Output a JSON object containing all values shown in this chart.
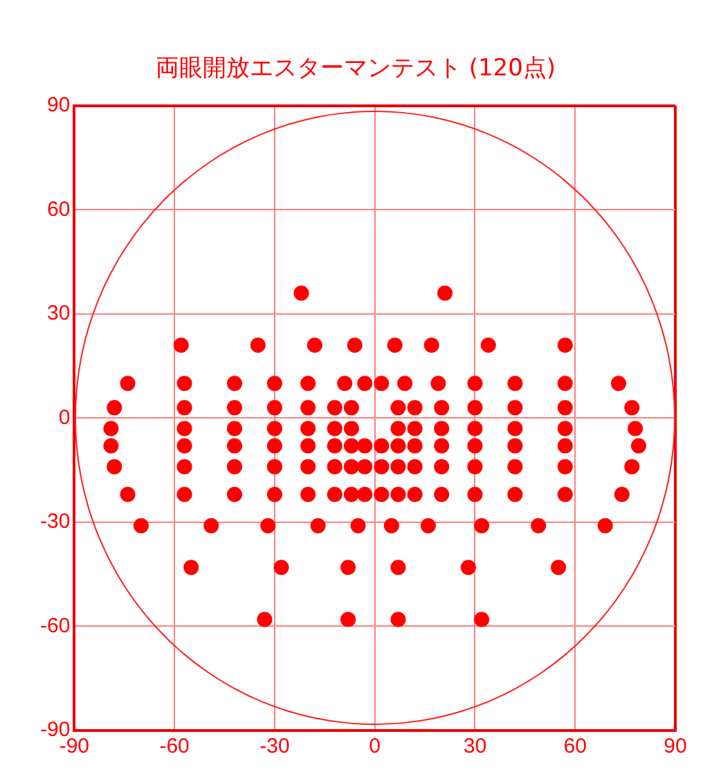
{
  "chart_data": {
    "type": "scatter",
    "title": "両眼開放エスターマンテスト (120点)",
    "xlim": [
      -90,
      90
    ],
    "ylim": [
      -90,
      90
    ],
    "xticks": [
      -90,
      -60,
      -30,
      0,
      30,
      60,
      90
    ],
    "yticks": [
      -90,
      -60,
      -30,
      0,
      30,
      60,
      90
    ],
    "grid": true,
    "legend": false,
    "marker": "circle",
    "series": [
      {
        "color": "#ff0000",
        "x": [
          -22,
          21,
          -58,
          -35,
          -18,
          -6,
          6,
          17,
          34,
          57,
          -74,
          -57,
          -42,
          -30,
          -20,
          -9,
          -3,
          2,
          9,
          19,
          30,
          42,
          57,
          73,
          -78,
          -57,
          -42,
          -30,
          -20,
          -12,
          -7,
          7,
          12,
          20,
          30,
          42,
          57,
          77,
          -79,
          -57,
          -42,
          -30,
          -20,
          -12,
          -7,
          7,
          12,
          20,
          30,
          42,
          57,
          78,
          -79,
          -57,
          -42,
          -30,
          -20,
          -12,
          -7,
          -3,
          2,
          7,
          12,
          20,
          30,
          42,
          57,
          79,
          -78,
          -57,
          -42,
          -30,
          -20,
          -12,
          -7,
          -3,
          2,
          7,
          12,
          20,
          30,
          42,
          57,
          77,
          -74,
          -57,
          -42,
          -30,
          -20,
          -12,
          -7,
          -3,
          2,
          7,
          12,
          20,
          30,
          42,
          57,
          74,
          -70,
          -49,
          -32,
          -17,
          -5,
          5,
          16,
          32,
          49,
          69,
          -55,
          -28,
          -8,
          7,
          28,
          55,
          -33,
          -8,
          7,
          32
        ],
        "values": [
          36,
          36,
          21,
          21,
          21,
          21,
          21,
          21,
          21,
          21,
          10,
          10,
          10,
          10,
          10,
          10,
          10,
          10,
          10,
          10,
          10,
          10,
          10,
          10,
          3,
          3,
          3,
          3,
          3,
          3,
          3,
          3,
          3,
          3,
          3,
          3,
          3,
          3,
          -3,
          -3,
          -3,
          -3,
          -3,
          -3,
          -3,
          -3,
          -3,
          -3,
          -3,
          -3,
          -3,
          -3,
          -8,
          -8,
          -8,
          -8,
          -8,
          -8,
          -8,
          -8,
          -8,
          -8,
          -8,
          -8,
          -8,
          -8,
          -8,
          -8,
          -14,
          -14,
          -14,
          -14,
          -14,
          -14,
          -14,
          -14,
          -14,
          -14,
          -14,
          -14,
          -14,
          -14,
          -14,
          -14,
          -22,
          -22,
          -22,
          -22,
          -22,
          -22,
          -22,
          -22,
          -22,
          -22,
          -22,
          -22,
          -22,
          -22,
          -22,
          -22,
          -31,
          -31,
          -31,
          -31,
          -31,
          -31,
          -31,
          -31,
          -31,
          -31,
          -43,
          -43,
          -43,
          -43,
          -43,
          -43,
          -58,
          -58,
          -58,
          -58
        ]
      }
    ]
  }
}
